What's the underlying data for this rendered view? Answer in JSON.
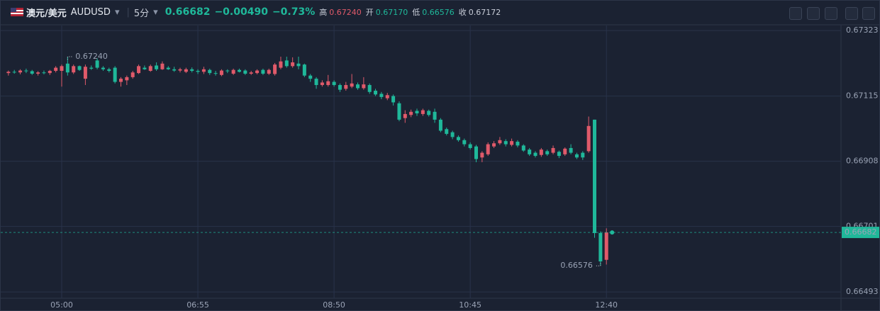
{
  "header": {
    "pair": "澳元/美元",
    "symbol": "AUDUSD",
    "interval": "5分",
    "price": "0.66682",
    "change": "−0.00490",
    "change_pct": "−0.73%",
    "high_label": "高",
    "high": "0.67240",
    "open_label": "开",
    "open": "0.67170",
    "low_label": "低",
    "low": "0.66576",
    "close_label": "收",
    "close": "0.67172"
  },
  "chart_data": {
    "type": "candlestick",
    "up_color": "#e05a6a",
    "down_color": "#1fb89a",
    "grid": true,
    "ylim": [
      0.66473,
      0.67339
    ],
    "yticks": [
      0.67323,
      0.67115,
      0.66908,
      0.66701,
      0.66493
    ],
    "categories": [
      null,
      null,
      null,
      null,
      null,
      null,
      null,
      null,
      null,
      "05:00",
      null,
      null,
      null,
      null,
      null,
      null,
      null,
      null,
      null,
      null,
      null,
      null,
      null,
      null,
      null,
      null,
      null,
      null,
      null,
      null,
      null,
      null,
      "06:55",
      null,
      null,
      null,
      null,
      null,
      null,
      null,
      null,
      null,
      null,
      null,
      null,
      null,
      null,
      null,
      null,
      null,
      null,
      null,
      null,
      null,
      null,
      "08:50",
      null,
      null,
      null,
      null,
      null,
      null,
      null,
      null,
      null,
      null,
      null,
      null,
      null,
      null,
      null,
      null,
      null,
      null,
      null,
      null,
      null,
      null,
      "10:45",
      null,
      null,
      null,
      null,
      null,
      null,
      null,
      null,
      null,
      null,
      null,
      null,
      null,
      null,
      null,
      null,
      null,
      null,
      null,
      null,
      null,
      null,
      "12:40"
    ],
    "candles": [
      [
        0.67188,
        0.67196,
        0.6718,
        0.67192
      ],
      [
        0.67192,
        0.67198,
        0.67186,
        0.6719
      ],
      [
        0.6719,
        0.672,
        0.67184,
        0.67196
      ],
      [
        0.67196,
        0.67202,
        0.67188,
        0.67194
      ],
      [
        0.67194,
        0.67198,
        0.67182,
        0.67186
      ],
      [
        0.67186,
        0.67194,
        0.6718,
        0.6719
      ],
      [
        0.6719,
        0.67196,
        0.67184,
        0.67188
      ],
      [
        0.67188,
        0.67198,
        0.67182,
        0.67195
      ],
      [
        0.67195,
        0.6721,
        0.6719,
        0.67205
      ],
      [
        0.67195,
        0.67215,
        0.67145,
        0.6721
      ],
      [
        0.67218,
        0.6724,
        0.6718,
        0.6719
      ],
      [
        0.6719,
        0.67215,
        0.67185,
        0.6721
      ],
      [
        0.6721,
        0.67212,
        0.67195,
        0.67198
      ],
      [
        0.6717,
        0.67215,
        0.6715,
        0.67208
      ],
      [
        0.67205,
        0.67212,
        0.67198,
        0.67202
      ],
      [
        0.67228,
        0.67235,
        0.672,
        0.67205
      ],
      [
        0.67205,
        0.6721,
        0.67195,
        0.672
      ],
      [
        0.672,
        0.67205,
        0.6719,
        0.67195
      ],
      [
        0.67205,
        0.6721,
        0.67155,
        0.6716
      ],
      [
        0.6716,
        0.67175,
        0.67145,
        0.6717
      ],
      [
        0.67165,
        0.6718,
        0.6715,
        0.67175
      ],
      [
        0.67175,
        0.67195,
        0.6717,
        0.6719
      ],
      [
        0.67188,
        0.67215,
        0.67185,
        0.6721
      ],
      [
        0.67205,
        0.67212,
        0.67198,
        0.672
      ],
      [
        0.67195,
        0.67215,
        0.67192,
        0.6721
      ],
      [
        0.67212,
        0.67222,
        0.67195,
        0.672
      ],
      [
        0.672,
        0.67225,
        0.67198,
        0.67218
      ],
      [
        0.67205,
        0.6721,
        0.67198,
        0.672
      ],
      [
        0.672,
        0.67208,
        0.67192,
        0.67196
      ],
      [
        0.67196,
        0.67205,
        0.6719,
        0.672
      ],
      [
        0.67192,
        0.67205,
        0.67188,
        0.672
      ],
      [
        0.672,
        0.67206,
        0.6719,
        0.67195
      ],
      [
        0.67195,
        0.672,
        0.67185,
        0.67192
      ],
      [
        0.67192,
        0.67208,
        0.67185,
        0.672
      ],
      [
        0.67198,
        0.67202,
        0.67182,
        0.67188
      ],
      [
        0.67188,
        0.67195,
        0.6718,
        0.67186
      ],
      [
        0.67182,
        0.672,
        0.67178,
        0.67196
      ],
      [
        0.67196,
        0.672,
        0.67188,
        0.67194
      ],
      [
        0.67186,
        0.67202,
        0.67182,
        0.67198
      ],
      [
        0.67198,
        0.67202,
        0.6719,
        0.67192
      ],
      [
        0.67196,
        0.672,
        0.67182,
        0.67186
      ],
      [
        0.67186,
        0.67195,
        0.67182,
        0.6719
      ],
      [
        0.67188,
        0.672,
        0.67184,
        0.67196
      ],
      [
        0.67198,
        0.67202,
        0.67182,
        0.67186
      ],
      [
        0.67186,
        0.67202,
        0.67182,
        0.67198
      ],
      [
        0.67185,
        0.6722,
        0.6718,
        0.67215
      ],
      [
        0.67205,
        0.6724,
        0.672,
        0.67225
      ],
      [
        0.67228,
        0.6724,
        0.67205,
        0.6721
      ],
      [
        0.6721,
        0.67238,
        0.67205,
        0.67222
      ],
      [
        0.67218,
        0.6724,
        0.672,
        0.6721
      ],
      [
        0.67215,
        0.67218,
        0.67175,
        0.6718
      ],
      [
        0.6718,
        0.67185,
        0.6716,
        0.6717
      ],
      [
        0.6717,
        0.67175,
        0.67138,
        0.6715
      ],
      [
        0.6715,
        0.67165,
        0.67145,
        0.67158
      ],
      [
        0.6715,
        0.67182,
        0.67145,
        0.67162
      ],
      [
        0.6716,
        0.67165,
        0.67145,
        0.6715
      ],
      [
        0.6715,
        0.67155,
        0.67128,
        0.67135
      ],
      [
        0.67138,
        0.6716,
        0.67132,
        0.6715
      ],
      [
        0.67145,
        0.67185,
        0.6714,
        0.67155
      ],
      [
        0.67152,
        0.67158,
        0.67135,
        0.6714
      ],
      [
        0.6714,
        0.67175,
        0.67135,
        0.67152
      ],
      [
        0.6715,
        0.67155,
        0.67122,
        0.67128
      ],
      [
        0.67132,
        0.67138,
        0.67115,
        0.6712
      ],
      [
        0.67122,
        0.67128,
        0.67105,
        0.67112
      ],
      [
        0.67108,
        0.67125,
        0.67102,
        0.67118
      ],
      [
        0.67115,
        0.6712,
        0.67085,
        0.67095
      ],
      [
        0.67092,
        0.67098,
        0.67035,
        0.6704
      ],
      [
        0.67045,
        0.6707,
        0.6703,
        0.67058
      ],
      [
        0.67055,
        0.67072,
        0.67048,
        0.67065
      ],
      [
        0.67068,
        0.67075,
        0.67052,
        0.6706
      ],
      [
        0.67058,
        0.67075,
        0.67052,
        0.6707
      ],
      [
        0.67068,
        0.67072,
        0.6705,
        0.67055
      ],
      [
        0.67065,
        0.67075,
        0.6703,
        0.6704
      ],
      [
        0.6704,
        0.67045,
        0.67,
        0.67005
      ],
      [
        0.6701,
        0.67015,
        0.6699,
        0.66995
      ],
      [
        0.67,
        0.67005,
        0.66978,
        0.66985
      ],
      [
        0.66985,
        0.6699,
        0.6697,
        0.66975
      ],
      [
        0.66975,
        0.6698,
        0.66955,
        0.66962
      ],
      [
        0.66962,
        0.66968,
        0.66945,
        0.6695
      ],
      [
        0.66955,
        0.6696,
        0.66905,
        0.66915
      ],
      [
        0.6692,
        0.6694,
        0.66905,
        0.66935
      ],
      [
        0.6693,
        0.66968,
        0.66925,
        0.66962
      ],
      [
        0.66955,
        0.66972,
        0.6695,
        0.66965
      ],
      [
        0.66965,
        0.66985,
        0.6696,
        0.66975
      ],
      [
        0.66972,
        0.66978,
        0.66955,
        0.66962
      ],
      [
        0.6696,
        0.6698,
        0.66955,
        0.66972
      ],
      [
        0.6697,
        0.66975,
        0.66952,
        0.66958
      ],
      [
        0.66958,
        0.66962,
        0.66938,
        0.66942
      ],
      [
        0.66945,
        0.6695,
        0.66925,
        0.6693
      ],
      [
        0.66935,
        0.6694,
        0.6692,
        0.66925
      ],
      [
        0.66928,
        0.6695,
        0.66922,
        0.66945
      ],
      [
        0.6694,
        0.66945,
        0.66925,
        0.6693
      ],
      [
        0.66935,
        0.66958,
        0.6693,
        0.6695
      ],
      [
        0.66938,
        0.66942,
        0.66918,
        0.66925
      ],
      [
        0.6693,
        0.66952,
        0.66925,
        0.66948
      ],
      [
        0.6695,
        0.66962,
        0.6693,
        0.66935
      ],
      [
        0.6693,
        0.66935,
        0.66915,
        0.6692
      ],
      [
        0.66935,
        0.6694,
        0.66912,
        0.6692
      ],
      [
        0.6694,
        0.6705,
        0.66935,
        0.6702
      ],
      [
        0.6704,
        0.6704,
        0.66665,
        0.6668
      ],
      [
        0.6668,
        0.66685,
        0.66576,
        0.6659
      ],
      [
        0.66595,
        0.66695,
        0.6658,
        0.66682
      ]
    ],
    "high_marker": {
      "value": 0.6724,
      "label": "0.67240"
    },
    "low_marker": {
      "value": 0.66576,
      "label": "0.66576"
    },
    "last_price": 0.66682
  }
}
